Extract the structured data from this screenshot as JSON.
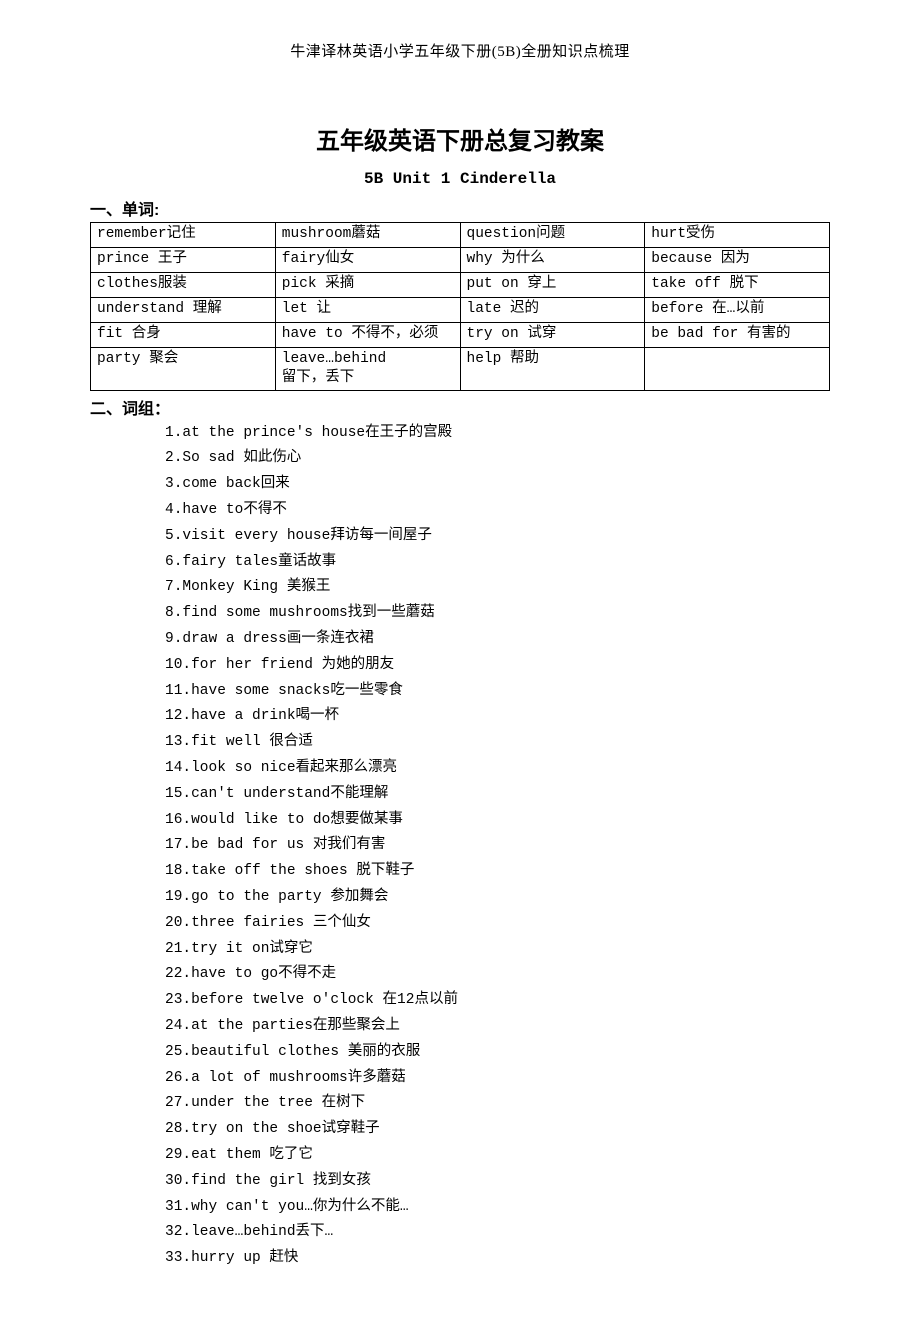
{
  "headerNote": "牛津译林英语小学五年级下册(5B)全册知识点梳理",
  "title": "五年级英语下册总复习教案",
  "subtitle": "5B Unit 1 Cinderella",
  "section1": "一、单词:",
  "section2": "二、词组：",
  "vocabTable": {
    "rows": [
      [
        "remember记住",
        "mushroom蘑菇",
        "question问题",
        "hurt受伤"
      ],
      [
        "prince 王子",
        "fairy仙女",
        "why 为什么",
        "because 因为"
      ],
      [
        "clothes服装",
        "pick 采摘",
        "put on 穿上",
        "take off 脱下"
      ],
      [
        "understand 理解",
        "let 让",
        "late 迟的",
        "before 在…以前"
      ],
      [
        "fit 合身",
        "have to 不得不，必须",
        "try on 试穿",
        "be bad for 有害的"
      ],
      [
        "party 聚会",
        "leave…behind\n留下，丢下",
        "help 帮助",
        ""
      ]
    ]
  },
  "phrases": [
    "1.at the prince's house在王子的宫殿",
    "2.So sad 如此伤心",
    "3.come back回来",
    "4.have to不得不",
    "5.visit every house拜访每一间屋子",
    "6.fairy tales童话故事",
    "7.Monkey King 美猴王",
    "8.find some mushrooms找到一些蘑菇",
    "9.draw a dress画一条连衣裙",
    "10.for her friend 为她的朋友",
    "11.have some snacks吃一些零食",
    "12.have a drink喝一杯",
    "13.fit well 很合适",
    "14.look so nice看起来那么漂亮",
    "15.can't understand不能理解",
    "16.would like to do想要做某事",
    "17.be bad for us 对我们有害",
    "18.take off the shoes 脱下鞋子",
    "19.go to the party 参加舞会",
    "20.three fairies 三个仙女",
    "21.try it on试穿它",
    "22.have to go不得不走",
    "23.before twelve o'clock 在12点以前",
    "24.at the parties在那些聚会上",
    "25.beautiful clothes 美丽的衣服",
    "26.a lot of mushrooms许多蘑菇",
    "27.under the tree 在树下",
    "28.try on the shoe试穿鞋子",
    "29.eat them 吃了它",
    "30.find the girl 找到女孩",
    "31.why can't you…你为什么不能…",
    "32.leave…behind丢下…",
    "33.hurry up 赶快"
  ]
}
